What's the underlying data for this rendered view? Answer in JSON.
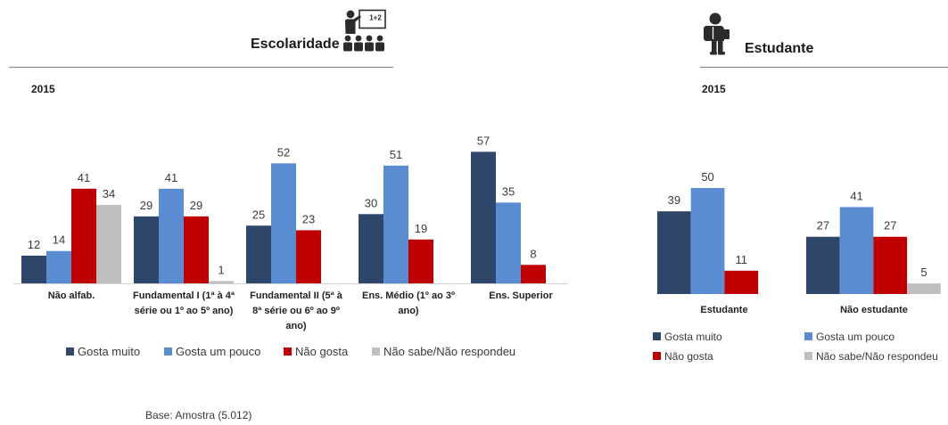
{
  "icons": {
    "escolaridade": {
      "name": "teacher-classroom-icon",
      "board_text": "1+2"
    },
    "estudante": {
      "name": "student-backpack-icon"
    }
  },
  "footer": {
    "base_note": "Base: Amostra (5.012)"
  },
  "chart_data": [
    {
      "type": "bar",
      "title": "Escolaridade",
      "subtitle": "2015",
      "categories": [
        "Não alfab.",
        "Fundamental I (1ª à 4ª série ou 1º ao 5º ano)",
        "Fundamental II (5ª à 8ª série ou 6º ao 9º ano)",
        "Ens. Médio (1º ao 3º ano)",
        "Ens. Superior"
      ],
      "series": [
        {
          "name": "Gosta muito",
          "color": "#2E4669",
          "values": [
            12,
            29,
            25,
            30,
            57
          ]
        },
        {
          "name": "Gosta um pouco",
          "color": "#5A8CD2",
          "values": [
            14,
            41,
            52,
            51,
            35
          ]
        },
        {
          "name": "Não gosta",
          "color": "#C00000",
          "values": [
            41,
            29,
            23,
            19,
            8
          ]
        },
        {
          "name": "Não sabe/Não respondeu",
          "color": "#BFBFBF",
          "values": [
            34,
            1,
            null,
            null,
            null
          ]
        }
      ],
      "ylim": [
        0,
        60
      ],
      "grid": false,
      "data_labels": true,
      "legend": "bottom"
    },
    {
      "type": "bar",
      "title": "Estudante",
      "subtitle": "2015",
      "categories": [
        "Estudante",
        "Não estudante"
      ],
      "series": [
        {
          "name": "Gosta muito",
          "color": "#2E4669",
          "values": [
            39,
            27
          ]
        },
        {
          "name": "Gosta um pouco",
          "color": "#5A8CD2",
          "values": [
            50,
            41
          ]
        },
        {
          "name": "Não gosta",
          "color": "#C00000",
          "values": [
            11,
            27
          ]
        },
        {
          "name": "Não sabe/Não respondeu",
          "color": "#BFBFBF",
          "values": [
            null,
            5
          ]
        }
      ],
      "ylim": [
        0,
        60
      ],
      "grid": false,
      "data_labels": true,
      "legend": "bottom"
    }
  ]
}
